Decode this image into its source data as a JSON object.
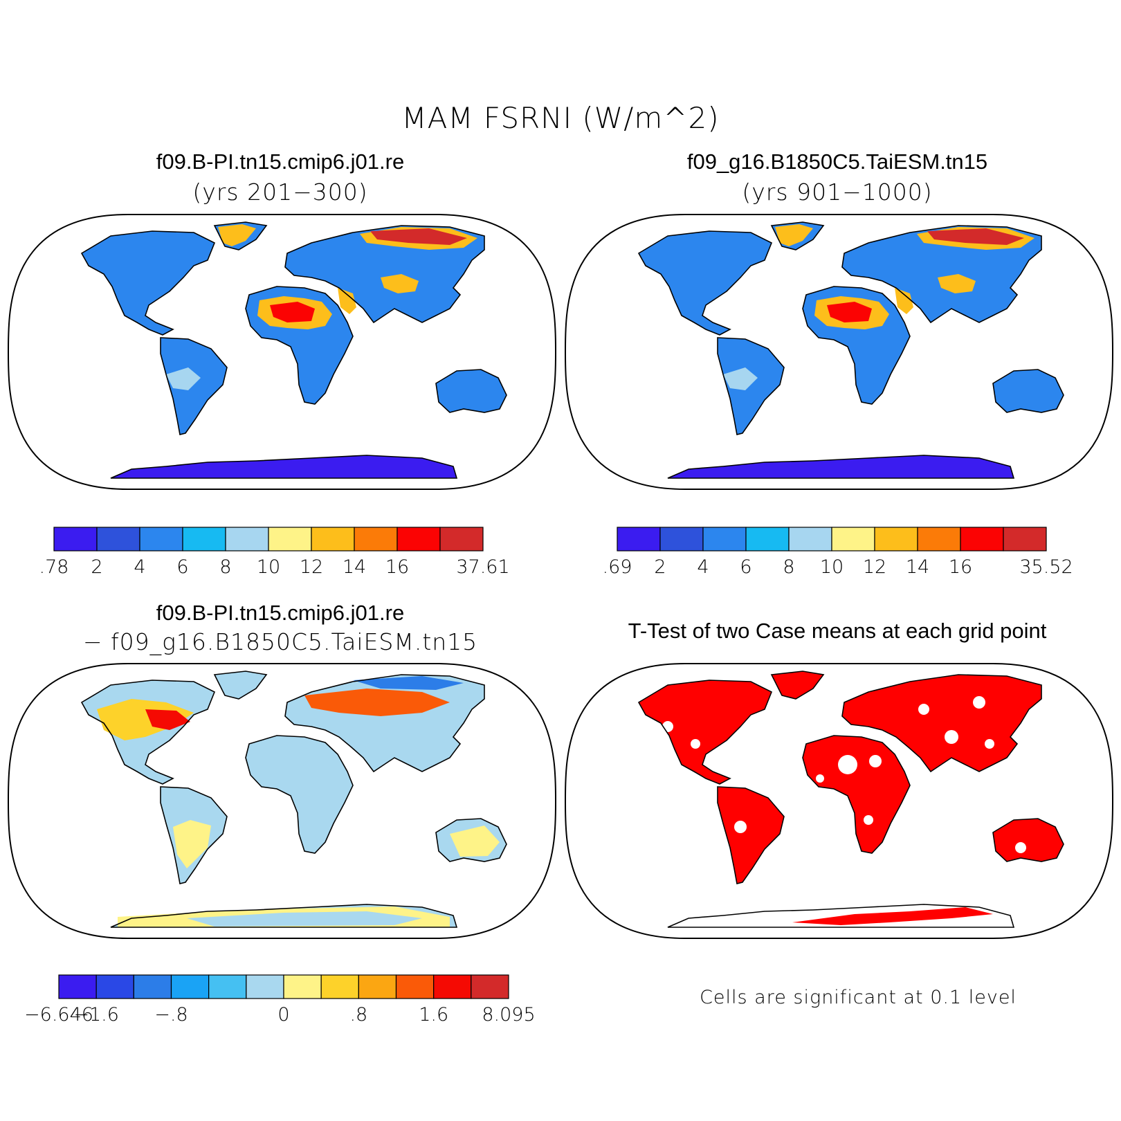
{
  "title": "MAM FSRNI (W/m^2)",
  "panels": {
    "top_left": {
      "title": "f09.B-PI.tn15.cmip6.j01.re",
      "subtitle": "(yrs 201−300)"
    },
    "top_right": {
      "title": "f09_g16.B1850C5.TaiESM.tn15",
      "subtitle": "(yrs 901−1000)"
    },
    "bottom_left": {
      "title": "f09.B-PI.tn15.cmip6.j01.re",
      "subtitle": "− f09_g16.B1850C5.TaiESM.tn15"
    },
    "bottom_right": {
      "title": "T-Test of two Case means at each grid point",
      "note": "Cells are significant at 0.1 level"
    }
  },
  "colorbars": {
    "top_left": {
      "colors": [
        "#3b1cf0",
        "#2e52db",
        "#2c86ee",
        "#17baf2",
        "#a7d6f0",
        "#fef388",
        "#fdbe1b",
        "#fb7b08",
        "#fb0303",
        "#d32a2a"
      ],
      "labels": [
        ".78",
        "2",
        "4",
        "6",
        "8",
        "10",
        "12",
        "14",
        "16",
        "",
        "37.61"
      ]
    },
    "top_right": {
      "colors": [
        "#3b1cf0",
        "#2e52db",
        "#2c86ee",
        "#17baf2",
        "#a7d6f0",
        "#fef388",
        "#fdbe1b",
        "#fb7b08",
        "#fb0303",
        "#d32a2a"
      ],
      "labels": [
        ".69",
        "2",
        "4",
        "6",
        "8",
        "10",
        "12",
        "14",
        "16",
        "",
        "35.52"
      ]
    },
    "bottom_left": {
      "colors": [
        "#3b1cf0",
        "#2a48e6",
        "#2c7de8",
        "#1aa3f5",
        "#45c0f2",
        "#a9d8ef",
        "#fef388",
        "#fdd22a",
        "#fba612",
        "#fa5a08",
        "#f50a03",
        "#d32a2a"
      ],
      "labels": [
        "−6.646",
        "−1.6",
        "",
        "−.8",
        "",
        "",
        "0",
        "",
        ".8",
        "",
        "1.6",
        "",
        "8.095"
      ]
    }
  },
  "map_colors": {
    "land_top": "#2c86ee",
    "land_diff": "#a9d8ef",
    "significant": "#ff0000",
    "warm": "#fb0303",
    "yellow": "#fef388"
  }
}
